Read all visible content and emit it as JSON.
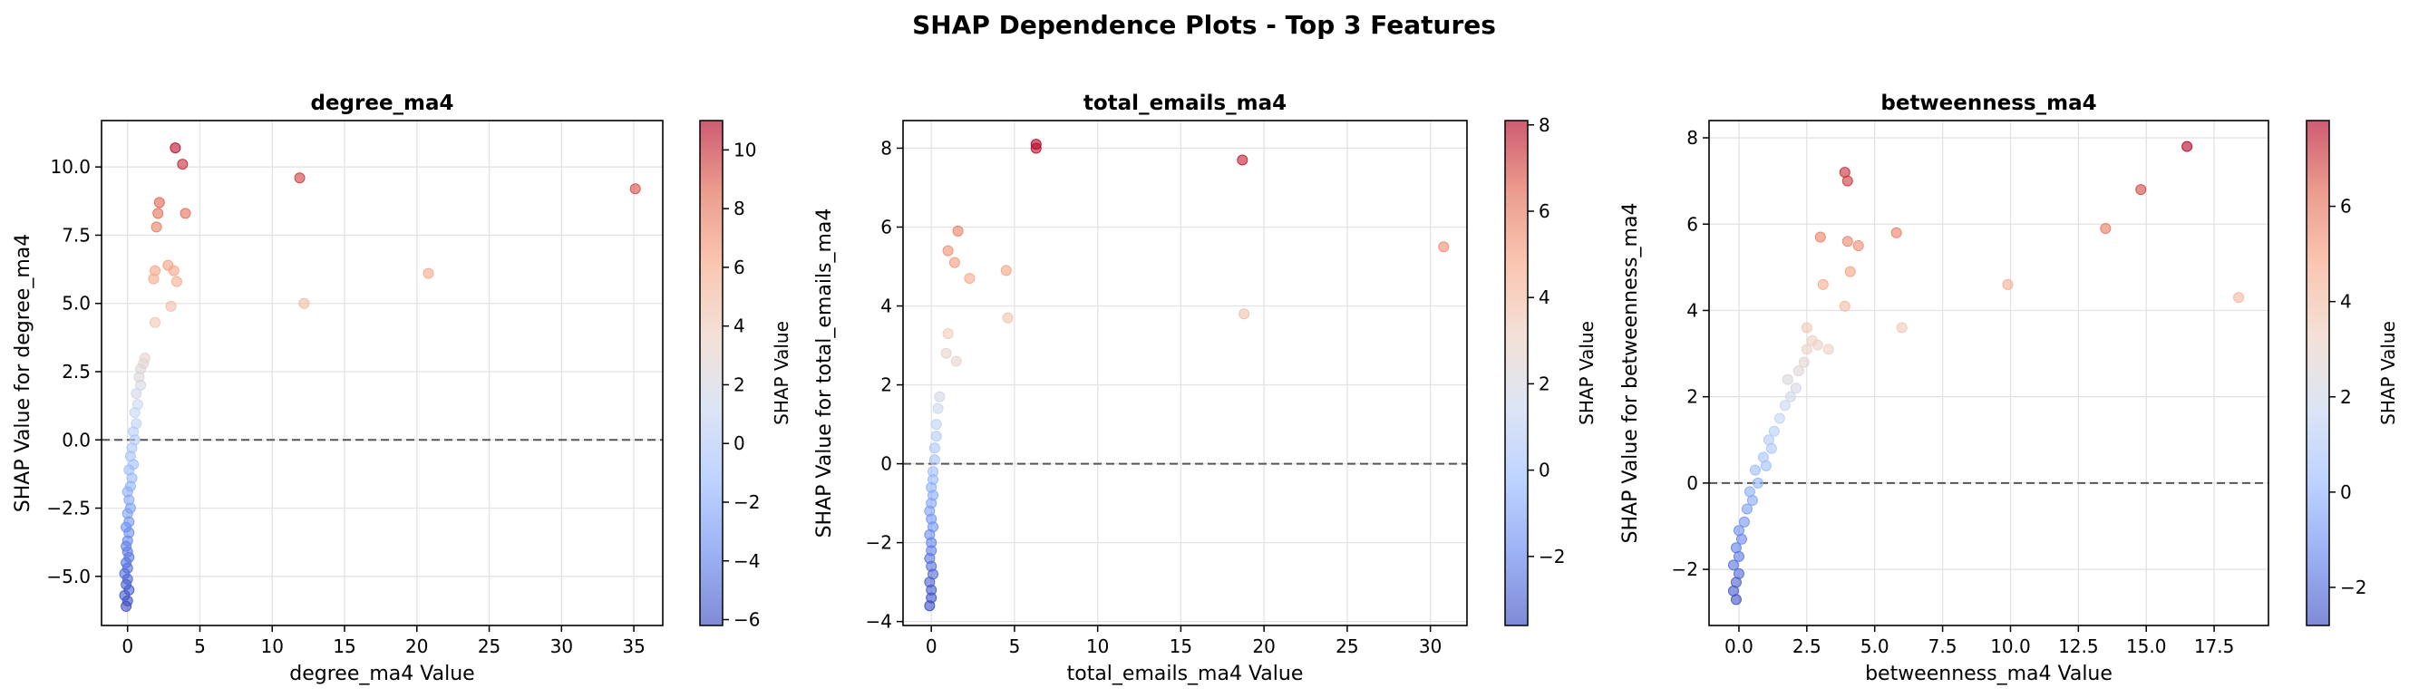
{
  "figure": {
    "suptitle": "SHAP Dependence Plots - Top 3 Features",
    "colorbar_label": "SHAP Value",
    "colormap": [
      "#3b4cc0",
      "#6788ee",
      "#9abbff",
      "#c9d7f0",
      "#edd1c2",
      "#f7a889",
      "#e26952",
      "#b40426"
    ],
    "point_opacity": 0.6,
    "zero_line_color": "#555555"
  },
  "chart_data": [
    {
      "type": "scatter",
      "title": "degree_ma4",
      "xlabel": "degree_ma4 Value",
      "ylabel": "SHAP Value for degree_ma4",
      "xlim": [
        -1.8,
        37
      ],
      "ylim": [
        -6.8,
        11.7
      ],
      "xticks": [
        0,
        5,
        10,
        15,
        20,
        25,
        30,
        35
      ],
      "xtick_labels": [
        "0",
        "5",
        "10",
        "15",
        "20",
        "25",
        "30",
        "35"
      ],
      "yticks": [
        -5.0,
        -2.5,
        0.0,
        2.5,
        5.0,
        7.5,
        10.0
      ],
      "ytick_labels": [
        "−5.0",
        "−2.5",
        "0.0",
        "2.5",
        "5.0",
        "7.5",
        "10.0"
      ],
      "grid": true,
      "zero_line": true,
      "colorbar": {
        "range": [
          -6.2,
          11
        ],
        "ticks": [
          -6,
          -4,
          -2,
          0,
          2,
          4,
          6,
          8,
          10
        ],
        "tick_labels": [
          "−6",
          "−4",
          "−2",
          "0",
          "2",
          "4",
          "6",
          "8",
          "10"
        ]
      },
      "points": [
        [
          3.3,
          10.7
        ],
        [
          3.8,
          10.1
        ],
        [
          11.9,
          9.6
        ],
        [
          35.1,
          9.2
        ],
        [
          2.2,
          8.7
        ],
        [
          2.1,
          8.3
        ],
        [
          4.0,
          8.3
        ],
        [
          2.0,
          7.8
        ],
        [
          2.8,
          6.4
        ],
        [
          3.2,
          6.2
        ],
        [
          1.9,
          6.2
        ],
        [
          20.8,
          6.1
        ],
        [
          1.8,
          5.9
        ],
        [
          3.4,
          5.8
        ],
        [
          12.2,
          5.0
        ],
        [
          3.0,
          4.9
        ],
        [
          1.9,
          4.3
        ],
        [
          1.2,
          3.0
        ],
        [
          1.1,
          2.8
        ],
        [
          0.9,
          2.6
        ],
        [
          0.8,
          2.3
        ],
        [
          0.9,
          2.0
        ],
        [
          0.6,
          1.7
        ],
        [
          0.7,
          1.3
        ],
        [
          0.5,
          1.0
        ],
        [
          0.6,
          0.6
        ],
        [
          0.4,
          0.3
        ],
        [
          0.5,
          0.0
        ],
        [
          0.3,
          -0.3
        ],
        [
          0.2,
          -0.6
        ],
        [
          0.4,
          -0.9
        ],
        [
          0.1,
          -1.1
        ],
        [
          0.3,
          -1.4
        ],
        [
          0.2,
          -1.7
        ],
        [
          0.0,
          -1.9
        ],
        [
          0.1,
          -2.2
        ],
        [
          0.2,
          -2.5
        ],
        [
          0.0,
          -2.7
        ],
        [
          0.1,
          -3.0
        ],
        [
          -0.1,
          -3.2
        ],
        [
          0.1,
          -3.4
        ],
        [
          0.0,
          -3.7
        ],
        [
          -0.1,
          -3.9
        ],
        [
          0.0,
          -4.1
        ],
        [
          0.1,
          -4.3
        ],
        [
          -0.1,
          -4.5
        ],
        [
          0.0,
          -4.7
        ],
        [
          -0.2,
          -4.9
        ],
        [
          0.0,
          -5.1
        ],
        [
          -0.1,
          -5.3
        ],
        [
          0.1,
          -5.5
        ],
        [
          -0.2,
          -5.7
        ],
        [
          0.0,
          -5.9
        ],
        [
          -0.1,
          -6.1
        ]
      ]
    },
    {
      "type": "scatter",
      "title": "total_emails_ma4",
      "xlabel": "total_emails_ma4 Value",
      "ylabel": "SHAP Value for total_emails_ma4",
      "xlim": [
        -1.7,
        32.2
      ],
      "ylim": [
        -4.1,
        8.7
      ],
      "xticks": [
        0,
        5,
        10,
        15,
        20,
        25,
        30
      ],
      "xtick_labels": [
        "0",
        "5",
        "10",
        "15",
        "20",
        "25",
        "30"
      ],
      "yticks": [
        -4,
        -2,
        0,
        2,
        4,
        6,
        8
      ],
      "ytick_labels": [
        "−4",
        "−2",
        "0",
        "2",
        "4",
        "6",
        "8"
      ],
      "grid": true,
      "zero_line": true,
      "colorbar": {
        "range": [
          -3.6,
          8.1
        ],
        "ticks": [
          -2,
          0,
          2,
          4,
          6,
          8
        ],
        "tick_labels": [
          "−2",
          "0",
          "2",
          "4",
          "6",
          "8"
        ]
      },
      "points": [
        [
          6.3,
          8.1
        ],
        [
          6.3,
          8.0
        ],
        [
          18.7,
          7.7
        ],
        [
          1.6,
          5.9
        ],
        [
          1.0,
          5.4
        ],
        [
          30.8,
          5.5
        ],
        [
          1.4,
          5.1
        ],
        [
          4.5,
          4.9
        ],
        [
          2.3,
          4.7
        ],
        [
          18.8,
          3.8
        ],
        [
          4.6,
          3.7
        ],
        [
          1.0,
          3.3
        ],
        [
          0.9,
          2.8
        ],
        [
          1.5,
          2.6
        ],
        [
          0.5,
          1.7
        ],
        [
          0.4,
          1.4
        ],
        [
          0.3,
          1.0
        ],
        [
          0.3,
          0.7
        ],
        [
          0.2,
          0.4
        ],
        [
          0.2,
          0.1
        ],
        [
          0.1,
          -0.2
        ],
        [
          0.1,
          -0.4
        ],
        [
          0.0,
          -0.6
        ],
        [
          0.1,
          -0.8
        ],
        [
          0.0,
          -1.0
        ],
        [
          -0.1,
          -1.2
        ],
        [
          0.0,
          -1.4
        ],
        [
          0.1,
          -1.6
        ],
        [
          -0.1,
          -1.8
        ],
        [
          0.0,
          -2.0
        ],
        [
          0.0,
          -2.2
        ],
        [
          -0.1,
          -2.4
        ],
        [
          0.0,
          -2.6
        ],
        [
          0.1,
          -2.8
        ],
        [
          -0.1,
          -3.0
        ],
        [
          0.0,
          -3.2
        ],
        [
          0.0,
          -3.4
        ],
        [
          -0.1,
          -3.6
        ]
      ]
    },
    {
      "type": "scatter",
      "title": "betweenness_ma4",
      "xlabel": "betweenness_ma4 Value",
      "ylabel": "SHAP Value for betweenness_ma4",
      "xlim": [
        -1.1,
        19.5
      ],
      "ylim": [
        -3.3,
        8.4
      ],
      "xticks": [
        0,
        2.5,
        5,
        7.5,
        10,
        12.5,
        15,
        17.5
      ],
      "xtick_labels": [
        "0.0",
        "2.5",
        "5.0",
        "7.5",
        "10.0",
        "12.5",
        "15.0",
        "17.5"
      ],
      "yticks": [
        -2,
        0,
        2,
        4,
        6,
        8
      ],
      "ytick_labels": [
        "−2",
        "0",
        "2",
        "4",
        "6",
        "8"
      ],
      "grid": true,
      "zero_line": true,
      "colorbar": {
        "range": [
          -2.8,
          7.8
        ],
        "ticks": [
          -2,
          0,
          2,
          4,
          6
        ],
        "tick_labels": [
          "−2",
          "0",
          "2",
          "4",
          "6"
        ]
      },
      "points": [
        [
          16.5,
          7.8
        ],
        [
          3.9,
          7.2
        ],
        [
          4.0,
          7.0
        ],
        [
          14.8,
          6.8
        ],
        [
          13.5,
          5.9
        ],
        [
          5.8,
          5.8
        ],
        [
          3.0,
          5.7
        ],
        [
          4.0,
          5.6
        ],
        [
          4.4,
          5.5
        ],
        [
          4.1,
          4.9
        ],
        [
          9.9,
          4.6
        ],
        [
          3.1,
          4.6
        ],
        [
          18.4,
          4.3
        ],
        [
          3.9,
          4.1
        ],
        [
          2.5,
          3.6
        ],
        [
          6.0,
          3.6
        ],
        [
          2.7,
          3.3
        ],
        [
          2.9,
          3.2
        ],
        [
          2.5,
          3.1
        ],
        [
          3.3,
          3.1
        ],
        [
          2.4,
          2.8
        ],
        [
          2.2,
          2.6
        ],
        [
          1.8,
          2.4
        ],
        [
          2.1,
          2.2
        ],
        [
          1.9,
          2.0
        ],
        [
          1.7,
          1.8
        ],
        [
          1.5,
          1.5
        ],
        [
          1.3,
          1.2
        ],
        [
          1.1,
          1.0
        ],
        [
          1.2,
          0.8
        ],
        [
          0.9,
          0.6
        ],
        [
          1.0,
          0.4
        ],
        [
          0.6,
          0.3
        ],
        [
          0.7,
          0.0
        ],
        [
          0.4,
          -0.2
        ],
        [
          0.5,
          -0.4
        ],
        [
          0.3,
          -0.6
        ],
        [
          0.2,
          -0.9
        ],
        [
          0.0,
          -1.1
        ],
        [
          0.1,
          -1.3
        ],
        [
          -0.1,
          -1.5
        ],
        [
          0.0,
          -1.7
        ],
        [
          -0.2,
          -1.9
        ],
        [
          0.0,
          -2.1
        ],
        [
          -0.1,
          -2.3
        ],
        [
          -0.2,
          -2.5
        ],
        [
          -0.1,
          -2.7
        ]
      ]
    }
  ]
}
